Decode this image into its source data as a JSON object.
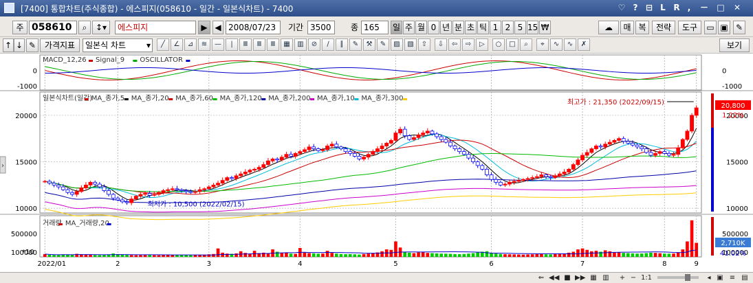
{
  "window": {
    "title": "[7400] 통합차트(주식종합) - 에스피지(058610 - 일간 - 일본식차트) - 7400",
    "buttons": [
      "♡",
      "?",
      "⊟",
      "L",
      "R",
      ",",
      "－",
      "□",
      "✕"
    ]
  },
  "toolbar1": {
    "market": "주",
    "code": "058610",
    "name": "에스피지",
    "date": "2008/07/23",
    "period_label": "기간",
    "period_value": "3500",
    "count_label": "종",
    "count_value": "165",
    "interval_buttons": [
      "일",
      "주",
      "월",
      "0",
      "년",
      "분",
      "초",
      "틱",
      "1",
      "2",
      "5",
      "15",
      "₩"
    ],
    "right_buttons": [
      "매",
      "복",
      "전략",
      "도구"
    ]
  },
  "toolbar2": {
    "indicator_button": "가격지표",
    "chart_type": "일본식 차트",
    "view_button": "보기"
  },
  "macd_panel": {
    "legend": [
      {
        "text": "MACD_12,26",
        "color": "#cc0000"
      },
      {
        "text": "Signal_9",
        "color": "#00aa00"
      },
      {
        "text": "OSCILLATOR",
        "color": "#0000cc"
      }
    ],
    "ticks": [
      "0",
      "-1000"
    ]
  },
  "price_panel": {
    "legend": [
      {
        "text": "일본식차트(일간)",
        "color": "#cc0000"
      },
      {
        "text": "MA_종가,5",
        "color": "#000000"
      },
      {
        "text": "MA_종가,20",
        "color": "#cc0000"
      },
      {
        "text": "MA_종가,60",
        "color": "#00bb00"
      },
      {
        "text": "MA_종가,120",
        "color": "#0000aa"
      },
      {
        "text": "MA_종가,200",
        "color": "#cc00cc"
      },
      {
        "text": "MA_종가,10",
        "color": "#00bbdd"
      },
      {
        "text": "MA_종가,300",
        "color": "#ffcc00"
      }
    ],
    "high_label": "최고가 : 21,350 (2022/09/15)",
    "low_label": "최저가 : 10,500 (2022/02/15)",
    "current_price": "20,800",
    "change_pct": "1.22%",
    "ticks": [
      "20000",
      "15000",
      "10000"
    ]
  },
  "volume_panel": {
    "legend": [
      {
        "text": "거래량",
        "color": "#cc0000"
      },
      {
        "text": "MA_거래량,20",
        "color": "#0000cc"
      }
    ],
    "scale_label": "*10",
    "ticks": [
      "500000",
      "100000"
    ],
    "current_volume": "2,710K",
    "volume_pct": "41.02%"
  },
  "x_axis": {
    "labels": [
      "2022/01",
      "2",
      "3",
      "4",
      "5",
      "6",
      "7",
      "8",
      "9"
    ]
  },
  "bottom": {
    "zoom": "1:1"
  },
  "chart_data": {
    "type": "candlestick",
    "title": "일본식차트(일간)",
    "ylim": [
      9500,
      22500
    ],
    "highest": {
      "value": 21350,
      "date": "2022/09/15"
    },
    "lowest": {
      "value": 10500,
      "date": "2022/02/15"
    },
    "last_close": 20800,
    "months": [
      "2022/01",
      "2",
      "3",
      "4",
      "5",
      "6",
      "7",
      "8",
      "9"
    ],
    "closes": [
      12900,
      12700,
      12500,
      12300,
      12000,
      11700,
      11500,
      11800,
      12200,
      12500,
      12800,
      12600,
      12300,
      11900,
      11500,
      11100,
      10900,
      10700,
      10600,
      11000,
      11300,
      11500,
      11600,
      11400,
      11500,
      11700,
      11900,
      12000,
      12100,
      12000,
      11900,
      11800,
      11700,
      11800,
      12000,
      12100,
      12300,
      12500,
      12700,
      13000,
      13300,
      13200,
      13500,
      13700,
      13900,
      14100,
      14200,
      14400,
      14700,
      15100,
      15300,
      15200,
      15500,
      15800,
      15600,
      15900,
      16100,
      16300,
      16600,
      16400,
      16200,
      16300,
      16700,
      16900,
      16600,
      16400,
      16100,
      15900,
      15600,
      15300,
      15500,
      15800,
      16100,
      16400,
      16700,
      17000,
      17300,
      18100,
      18500,
      17800,
      17400,
      17600,
      17900,
      18100,
      18300,
      18000,
      17700,
      17400,
      17100,
      16700,
      16400,
      16100,
      15800,
      15400,
      15000,
      14600,
      14200,
      13600,
      13100,
      12800,
      12500,
      12600,
      12800,
      12900,
      13000,
      13100,
      13200,
      13300,
      13400,
      13600,
      13400,
      13300,
      13500,
      13700,
      13900,
      14200,
      14700,
      15200,
      15700,
      16000,
      16400,
      16700,
      16600,
      16900,
      17100,
      17300,
      17500,
      17200,
      17000,
      16800,
      16600,
      16400,
      16000,
      15700,
      15900,
      16100,
      15900,
      15700,
      15800,
      16500,
      17400,
      18300,
      20000,
      20800
    ],
    "volume": [
      60000,
      45000,
      40000,
      38000,
      52000,
      47000,
      42000,
      65000,
      55000,
      48000,
      44000,
      39000,
      36000,
      41000,
      50000,
      72000,
      58000,
      46000,
      42000,
      38000,
      35000,
      37000,
      40000,
      39000,
      36000,
      35000,
      37000,
      41000,
      44000,
      40000,
      38000,
      36000,
      35000,
      39000,
      42000,
      48000,
      55000,
      62000,
      180000,
      90000,
      70000,
      65000,
      75000,
      120000,
      85000,
      70000,
      130000,
      80000,
      90000,
      70000,
      160000,
      110000,
      80000,
      95000,
      70000,
      65000,
      190000,
      90000,
      80000,
      75000,
      68000,
      72000,
      130000,
      85000,
      70000,
      62000,
      58000,
      60000,
      55000,
      50000,
      62000,
      70000,
      80000,
      95000,
      120000,
      160000,
      150000,
      330000,
      200000,
      110000,
      90000,
      80000,
      95000,
      100000,
      85000,
      80000,
      75000,
      70000,
      68000,
      65000,
      60000,
      58000,
      62000,
      70000,
      80000,
      95000,
      110000,
      120000,
      85000,
      70000,
      62000,
      58000,
      55000,
      52000,
      50000,
      48000,
      52000,
      55000,
      58000,
      60000,
      55000,
      52000,
      58000,
      62000,
      70000,
      90000,
      110000,
      160000,
      180000,
      150000,
      120000,
      130000,
      110000,
      140000,
      120000,
      100000,
      95000,
      85000,
      80000,
      75000,
      70000,
      72000,
      80000,
      90000,
      85000,
      78000,
      70000,
      68000,
      72000,
      100000,
      160000,
      330000,
      780000,
      300000
    ]
  }
}
